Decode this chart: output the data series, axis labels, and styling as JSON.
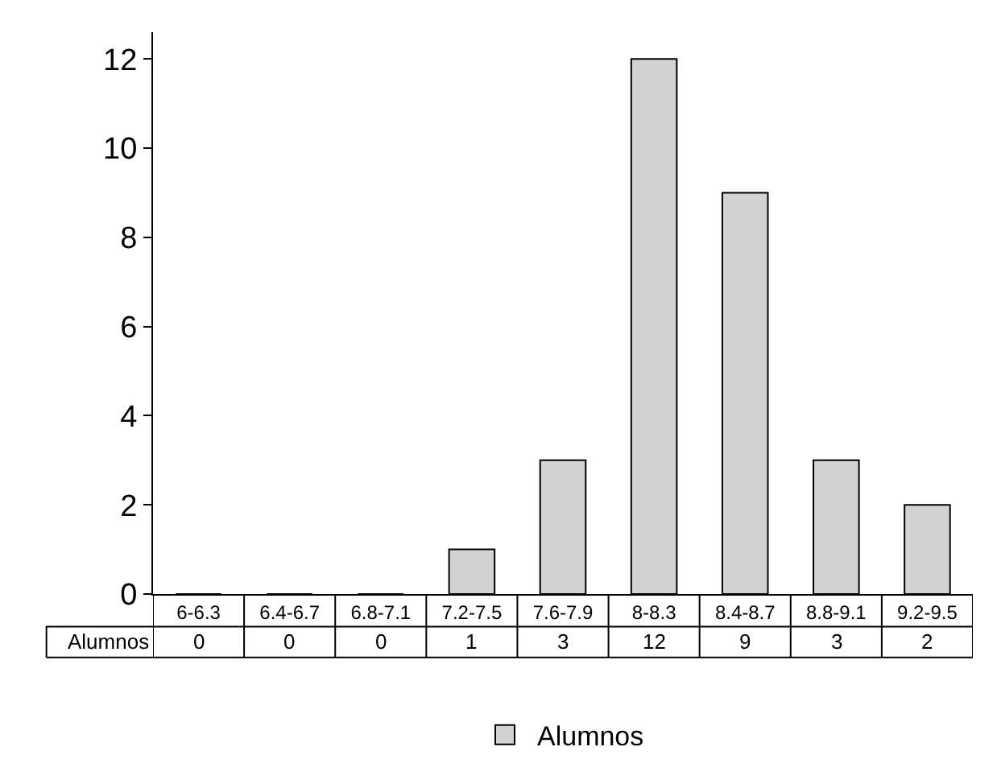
{
  "chart_data": {
    "type": "bar",
    "categories": [
      "6-6.3",
      "6.4-6.7",
      "6.8-7.1",
      "7.2-7.5",
      "7.6-7.9",
      "8-8.3",
      "8.4-8.7",
      "8.8-9.1",
      "9.2-9.5"
    ],
    "series": [
      {
        "name": "Alumnos",
        "color": "#d3d3d3",
        "values": [
          0,
          0,
          0,
          1,
          3,
          12,
          9,
          3,
          2
        ]
      }
    ],
    "ylim": [
      0,
      12.6
    ],
    "yticks": [
      0,
      2,
      4,
      6,
      8,
      10,
      12
    ],
    "grid": false,
    "legend": "bottom",
    "data_labels": true
  }
}
